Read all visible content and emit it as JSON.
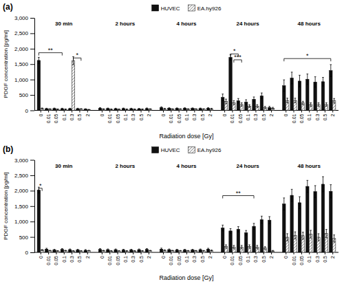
{
  "chart_data": [
    {
      "type": "bar",
      "title": "(a)",
      "xlabel": "Radiation dose [Gy]",
      "ylabel": "PDGF concentration [pg/ml]",
      "legend": "upper center",
      "categories": [
        "0",
        "0.01",
        "0.05",
        "0.1",
        "0.3",
        "0.5",
        "2"
      ],
      "groups": [
        "30 min",
        "2 hours",
        "4 hours",
        "24 hours",
        "48 hours"
      ],
      "series": [
        {
          "name": "HUVEC",
          "color": "#111111",
          "values": [
            [
              1620,
              55,
              60,
              55,
              55,
              55,
              40
            ],
            [
              70,
              60,
              55,
              60,
              55,
              50,
              60
            ],
            [
              90,
              70,
              65,
              70,
              65,
              60,
              70
            ],
            [
              420,
              1720,
              310,
              270,
              360,
              470,
              95
            ],
            [
              800,
              1050,
              950,
              1010,
              920,
              930,
              1290
            ]
          ],
          "errors": [
            [
              100,
              15,
              15,
              15,
              15,
              15,
              12
            ],
            [
              20,
              15,
              15,
              15,
              15,
              15,
              18
            ],
            [
              25,
              15,
              15,
              15,
              15,
              15,
              18
            ],
            [
              110,
              95,
              75,
              75,
              75,
              95,
              35
            ],
            [
              190,
              190,
              190,
              170,
              170,
              140,
              195
            ]
          ]
        },
        {
          "name": "EA.hy926",
          "color": "#ffffff",
          "values": [
            [
              60,
              40,
              35,
              35,
              1610,
              45,
              25
            ],
            [
              40,
              35,
              35,
              35,
              35,
              35,
              42
            ],
            [
              50,
              40,
              42,
              42,
              42,
              42,
              50
            ],
            [
              290,
              250,
              190,
              140,
              140,
              90,
              70
            ],
            [
              320,
              320,
              240,
              190,
              190,
              190,
              310
            ]
          ],
          "errors": [
            [
              18,
              12,
              12,
              12,
              130,
              12,
              8
            ],
            [
              12,
              12,
              12,
              12,
              12,
              12,
              12
            ],
            [
              18,
              12,
              12,
              12,
              12,
              12,
              18
            ],
            [
              75,
              65,
              55,
              45,
              45,
              38,
              28
            ],
            [
              75,
              75,
              55,
              55,
              55,
              55,
              75
            ]
          ]
        }
      ],
      "annotations": [
        {
          "text": "**",
          "y": 1870,
          "from": {
            "group": 0,
            "category": 0,
            "series": 0
          },
          "to": {
            "group": 0,
            "category": 3,
            "series": 0
          }
        },
        {
          "text": "*",
          "y": 1700,
          "from": {
            "group": 0,
            "category": 4,
            "series": 1
          },
          "to": {
            "group": 0,
            "category": 5,
            "series": 1
          }
        },
        {
          "text": "*",
          "y": 1830,
          "from": {
            "group": 3,
            "category": 1,
            "series": 0
          },
          "to": {
            "group": 3,
            "category": 2,
            "series": 0
          }
        },
        {
          "text": "***",
          "y": 1640,
          "from": {
            "group": 3,
            "category": 1,
            "series": 1
          },
          "to": {
            "group": 3,
            "category": 2,
            "series": 1
          }
        },
        {
          "text": "*",
          "y": 1680,
          "from": {
            "group": 4,
            "category": 0,
            "series": 0
          },
          "to": {
            "group": 4,
            "category": 6,
            "series": 0
          }
        }
      ],
      "ylim": [
        0,
        3000
      ],
      "yticks": [
        0,
        500,
        {
          "value": 1000,
          "label": "1,000"
        },
        {
          "value": 1500,
          "label": "1,500"
        },
        {
          "value": 2000,
          "label": "2,000"
        },
        {
          "value": 2500,
          "label": "2,500"
        },
        {
          "value": 3000,
          "label": "3,000"
        }
      ]
    },
    {
      "type": "bar",
      "title": "(b)",
      "xlabel": "Radiation dose [Gy]",
      "ylabel": "PDGF concentration [pg/ml]",
      "legend": "upper center",
      "categories": [
        "0",
        "0.01",
        "0.05",
        "0.1",
        "0.3",
        "0.5",
        "2"
      ],
      "groups": [
        "30 min",
        "2 hours",
        "4 hours",
        "24 hours",
        "48 hours"
      ],
      "series": [
        {
          "name": "HUVEC",
          "color": "#111111",
          "values": [
            [
              2020,
              105,
              78,
              95,
              88,
              78,
              68
            ],
            [
              95,
              88,
              88,
              78,
              78,
              88,
              95
            ],
            [
              105,
              88,
              78,
              78,
              78,
              88,
              105
            ],
            [
              790,
              695,
              750,
              635,
              845,
              1060,
              1045
            ],
            [
              1570,
              1850,
              1610,
              2140,
              1970,
              2210,
              1980
            ]
          ],
          "errors": [
            [
              95,
              28,
              22,
              28,
              22,
              22,
              22
            ],
            [
              28,
              22,
              22,
              22,
              22,
              22,
              28
            ],
            [
              32,
              22,
              22,
              22,
              22,
              22,
              28
            ],
            [
              95,
              75,
              85,
              75,
              95,
              115,
              115
            ],
            [
              195,
              195,
              195,
              195,
              195,
              245,
              215
            ]
          ]
        },
        {
          "name": "EA.hy926",
          "color": "#ffffff",
          "values": [
            [
              75,
              55,
              45,
              55,
              45,
              45,
              55
            ],
            [
              55,
              45,
              45,
              45,
              45,
              45,
              55
            ],
            [
              65,
              55,
              50,
              50,
              50,
              50,
              60
            ],
            [
              190,
              170,
              170,
              190,
              170,
              140,
              45
            ],
            [
              490,
              550,
              540,
              590,
              490,
              610,
              450
            ]
          ],
          "errors": [
            [
              18,
              12,
              12,
              12,
              12,
              12,
              12
            ],
            [
              12,
              12,
              12,
              12,
              12,
              12,
              12
            ],
            [
              18,
              12,
              12,
              12,
              12,
              12,
              18
            ],
            [
              55,
              55,
              55,
              55,
              55,
              45,
              18
            ],
            [
              115,
              115,
              115,
              125,
              115,
              135,
              115
            ]
          ]
        }
      ],
      "annotations": [
        {
          "text": "*",
          "y": 2080,
          "from": {
            "group": 0,
            "category": 0,
            "series": 0
          },
          "to": {
            "group": 0,
            "category": 0,
            "series": 1
          }
        },
        {
          "text": "**",
          "y": 1840,
          "from": {
            "group": 3,
            "category": 0,
            "series": 0
          },
          "to": {
            "group": 3,
            "category": 4,
            "series": 0
          }
        }
      ],
      "ylim": [
        0,
        3000
      ],
      "yticks": [
        0,
        500,
        {
          "value": 1000,
          "label": "1,000"
        },
        {
          "value": 1500,
          "label": "1,500"
        },
        {
          "value": 2000,
          "label": "2,000"
        },
        {
          "value": 2500,
          "label": "2,500"
        },
        {
          "value": 3000,
          "label": "3,000"
        }
      ]
    }
  ]
}
